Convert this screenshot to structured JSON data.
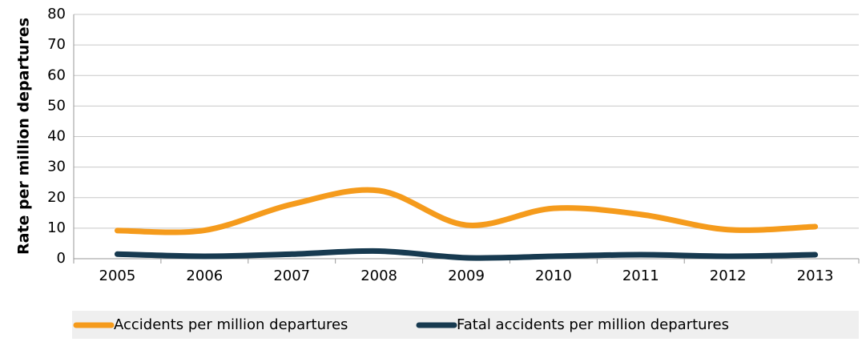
{
  "chart_data": {
    "type": "line",
    "y_label": "Rate per million departures",
    "categories": [
      "2005",
      "2006",
      "2007",
      "2008",
      "2009",
      "2010",
      "2011",
      "2012",
      "2013"
    ],
    "series": [
      {
        "name": "Accidents per million departures",
        "color": "#f59b1c",
        "values": [
          9.2,
          9.3,
          17.8,
          22.3,
          11.0,
          16.5,
          14.5,
          9.5,
          10.5
        ]
      },
      {
        "name": "Fatal accidents per million departures",
        "color": "#173a50",
        "values": [
          1.5,
          0.8,
          1.5,
          2.5,
          0.3,
          0.8,
          1.3,
          0.8,
          1.3
        ]
      }
    ],
    "ylim": [
      0,
      80
    ],
    "yticks": [
      0,
      10,
      20,
      30,
      40,
      50,
      60,
      70,
      80
    ],
    "grid": true,
    "legend": "bottom"
  }
}
